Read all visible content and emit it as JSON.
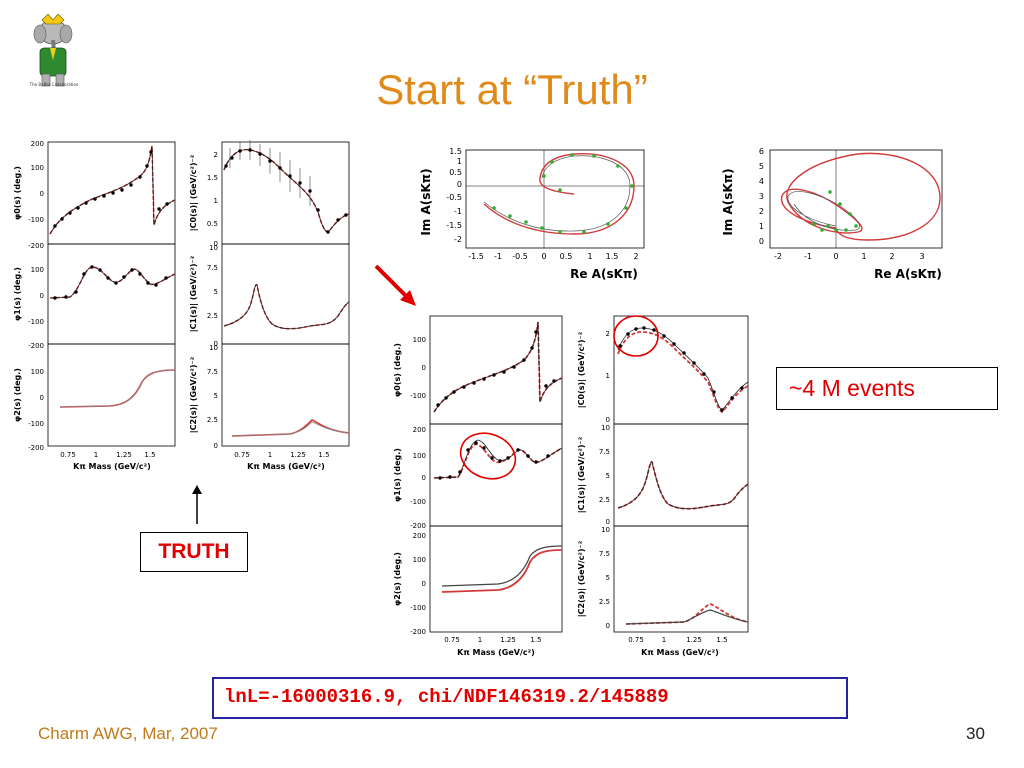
{
  "slide": {
    "title": "Start at “Truth”",
    "footer": "Charm AWG, Mar, 2007",
    "page_number": "30",
    "events_label": "~4 M events",
    "truth_label": "TRUTH",
    "result_text": "lnL=-16000316.9, chi/NDF146319.2/145889",
    "logo_caption": "The BaBar Collaboration"
  },
  "colors": {
    "title": "#e08a1a",
    "highlight": "#e00000",
    "result_border": "#2424a0",
    "fit_curve": "#d23a3a",
    "truth_curve": "#222222",
    "argand_points": "#2fb02f"
  },
  "left_panel": {
    "xlabel": "Kπ Mass (GeV/c²)",
    "x_ticks": [
      "0.75",
      "1",
      "1.25",
      "1.5"
    ],
    "left_ylabels": [
      "φ0(s)  (deg.)",
      "φ1(s)  (deg.)",
      "φ2(s)  (deg.)"
    ],
    "right_ylabels": [
      "|C0(s)|  (GeV/c²)⁻²",
      "|C1(s)|  (GeV/c²)⁻²",
      "|C2(s)|  (GeV/c²)⁻²"
    ],
    "phase_ticks": [
      "200",
      "100",
      "0",
      "-100",
      "-200"
    ],
    "c0_ticks": [
      "2",
      "1.5",
      "1",
      "0.5",
      "0"
    ],
    "c1_ticks": [
      "10",
      "7.5",
      "5",
      "2.5",
      "0"
    ],
    "c2_ticks": [
      "10",
      "7.5",
      "5",
      "2.5",
      "0"
    ]
  },
  "right_panel": {
    "xlabel": "Kπ Mass (GeV/c²)",
    "x_ticks": [
      "0.75",
      "1",
      "1.25",
      "1.5"
    ],
    "left_ylabels": [
      "φ0(s)  (deg.)",
      "φ1(s)  (deg.)",
      "φ2(s)  (deg.)"
    ],
    "right_ylabels": [
      "|C0(s)|  (GeV/c²)⁻²",
      "|C1(s)|  (GeV/c²)⁻²",
      "|C2(s)|  (GeV/c²)⁻²"
    ],
    "phase_ticks": [
      "200",
      "100",
      "0",
      "-100",
      "-200"
    ],
    "c0_ticks": [
      "2",
      "1",
      "0"
    ],
    "c1_ticks": [
      "10",
      "7.5",
      "5",
      "2.5",
      "0"
    ],
    "c2_ticks": [
      "10",
      "7.5",
      "5",
      "2.5",
      "0"
    ]
  },
  "argand": {
    "ylabel": "Im A(sKπ)",
    "xlabel": "Re A(sKπ)",
    "left_y_ticks": [
      "1.5",
      "1",
      "0.5",
      "0",
      "-0.5",
      "-1",
      "-1.5",
      "-2"
    ],
    "left_x_ticks": [
      "-1.5",
      "-1",
      "-0.5",
      "0",
      "0.5",
      "1",
      "1.5",
      "2"
    ],
    "right_y_ticks": [
      "6",
      "5",
      "4",
      "3",
      "2",
      "1",
      "0"
    ],
    "right_x_ticks": [
      "-2",
      "-1",
      "0",
      "1",
      "2",
      "3"
    ]
  }
}
